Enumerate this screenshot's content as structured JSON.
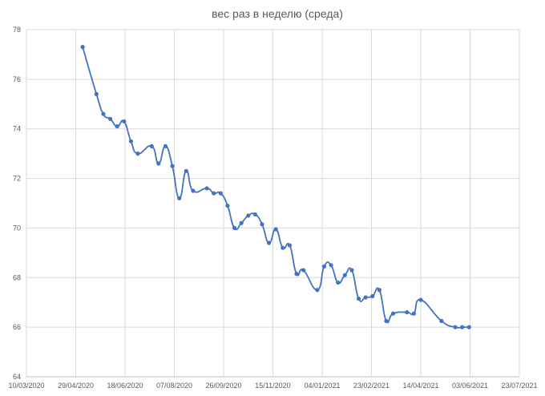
{
  "chart_data": {
    "type": "scatter",
    "title": "вес раз в неделю (среда)",
    "xlabel": "",
    "ylabel": "",
    "x_axis_kind": "date",
    "xlim": [
      "2020-03-10",
      "2021-07-23"
    ],
    "ylim": [
      64,
      78
    ],
    "x_ticks": [
      "10/03/2020",
      "29/04/2020",
      "18/06/2020",
      "07/08/2020",
      "26/09/2020",
      "15/11/2020",
      "04/01/2021",
      "23/02/2021",
      "14/04/2021",
      "03/06/2021",
      "23/07/2021"
    ],
    "y_ticks": [
      64,
      66,
      68,
      70,
      72,
      74,
      76,
      78
    ],
    "grid": true,
    "legend": "none",
    "line_style": "smoothed",
    "color": "#4472c4",
    "series": [
      {
        "x": [
          "2020-05-06",
          "2020-05-20",
          "2020-05-27",
          "2020-06-03",
          "2020-06-10",
          "2020-06-17",
          "2020-06-24",
          "2020-07-01",
          "2020-07-15",
          "2020-07-22",
          "2020-07-29",
          "2020-08-05",
          "2020-08-12",
          "2020-08-19",
          "2020-08-26",
          "2020-09-09",
          "2020-09-16",
          "2020-09-23",
          "2020-09-30",
          "2020-10-07",
          "2020-10-14",
          "2020-10-21",
          "2020-10-28",
          "2020-11-04",
          "2020-11-11",
          "2020-11-18",
          "2020-11-25",
          "2020-12-02",
          "2020-12-09",
          "2020-12-16",
          "2020-12-30",
          "2021-01-06",
          "2021-01-13",
          "2021-01-20",
          "2021-01-27",
          "2021-02-03",
          "2021-02-10",
          "2021-02-17",
          "2021-02-24",
          "2021-03-03",
          "2021-03-10",
          "2021-03-17",
          "2021-03-31",
          "2021-04-07",
          "2021-04-14",
          "2021-05-05",
          "2021-05-19",
          "2021-05-26",
          "2021-06-02"
        ],
        "y": [
          77.3,
          75.4,
          74.6,
          74.4,
          74.1,
          74.3,
          73.5,
          73.0,
          73.3,
          72.6,
          73.3,
          72.5,
          71.2,
          72.3,
          71.5,
          71.6,
          71.4,
          71.4,
          70.9,
          70.0,
          70.2,
          70.5,
          70.55,
          70.15,
          69.4,
          69.95,
          69.2,
          69.3,
          68.15,
          68.3,
          67.5,
          68.45,
          68.5,
          67.8,
          68.1,
          68.3,
          67.15,
          67.2,
          67.25,
          67.5,
          66.25,
          66.55,
          66.6,
          66.55,
          67.1,
          66.25,
          66.0,
          66.0,
          66.0
        ]
      }
    ]
  }
}
